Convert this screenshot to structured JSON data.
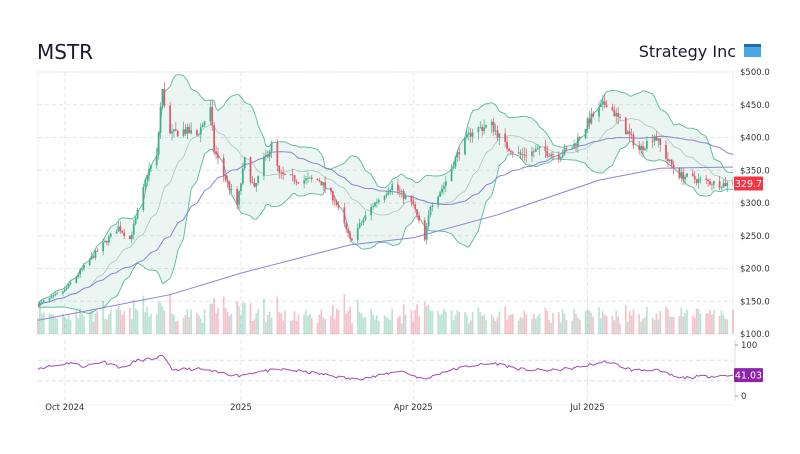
{
  "header": {
    "ticker": "MSTR",
    "company": "Strategy Inc",
    "logo_icon": "calendar-window-icon"
  },
  "colors": {
    "up": "#3fae8a",
    "down": "#e0566c",
    "band": "#5bb89a",
    "sma_mid": "#a8c8b8",
    "sma50": "#8a86cc",
    "sma200": "#8a86cc",
    "rsi": "#a04cb0",
    "price_tag": "#f23645",
    "rsi_tag": "#8e24aa"
  },
  "chart_data": {
    "type": "candlestick",
    "title": "MSTR",
    "price_axis": {
      "ylim": [
        100,
        500
      ],
      "ticks": [
        500,
        450,
        400,
        350,
        300,
        250,
        200,
        150,
        100
      ],
      "tick_labels": [
        "$500.0",
        "$450.0",
        "$400.0",
        "$350.0",
        "$300.0",
        "$250.0",
        "$200.0",
        "$150.0",
        "$100.0"
      ]
    },
    "x_axis": {
      "range": [
        "2024-09-17",
        "2025-09-15"
      ],
      "ticks": [
        {
          "date": "2024-10-01",
          "label": "Oct 2024"
        },
        {
          "date": "2025-01-01",
          "label": "2025"
        },
        {
          "date": "2025-04-01",
          "label": "Apr 2025"
        },
        {
          "date": "2025-07-01",
          "label": "Jul 2025"
        }
      ]
    },
    "grid": true,
    "close_path": [
      [
        "2024-09-17",
        145
      ],
      [
        "2024-09-24",
        155
      ],
      [
        "2024-10-01",
        167
      ],
      [
        "2024-10-14",
        213
      ],
      [
        "2024-10-22",
        240
      ],
      [
        "2024-10-29",
        263
      ],
      [
        "2024-11-04",
        245
      ],
      [
        "2024-11-07",
        274
      ],
      [
        "2024-11-11",
        320
      ],
      [
        "2024-11-13",
        346
      ],
      [
        "2024-11-18",
        370
      ],
      [
        "2024-11-20",
        446
      ],
      [
        "2024-11-21",
        470
      ],
      [
        "2024-11-25",
        404
      ],
      [
        "2024-12-02",
        411
      ],
      [
        "2024-12-09",
        404
      ],
      [
        "2024-12-16",
        442
      ],
      [
        "2024-12-18",
        381
      ],
      [
        "2024-12-23",
        343
      ],
      [
        "2024-12-30",
        297
      ],
      [
        "2025-01-03",
        365
      ],
      [
        "2025-01-08",
        320
      ],
      [
        "2025-01-13",
        365
      ],
      [
        "2025-01-17",
        388
      ],
      [
        "2025-01-21",
        343
      ],
      [
        "2025-01-31",
        335
      ],
      [
        "2025-02-11",
        335
      ],
      [
        "2025-02-19",
        305
      ],
      [
        "2025-02-27",
        243
      ],
      [
        "2025-03-04",
        266
      ],
      [
        "2025-03-11",
        297
      ],
      [
        "2025-03-21",
        327
      ],
      [
        "2025-04-01",
        297
      ],
      [
        "2025-04-07",
        243
      ],
      [
        "2025-04-10",
        297
      ],
      [
        "2025-04-17",
        327
      ],
      [
        "2025-04-25",
        381
      ],
      [
        "2025-05-02",
        411
      ],
      [
        "2025-05-12",
        419
      ],
      [
        "2025-05-19",
        388
      ],
      [
        "2025-05-27",
        373
      ],
      [
        "2025-06-06",
        381
      ],
      [
        "2025-06-16",
        373
      ],
      [
        "2025-06-24",
        388
      ],
      [
        "2025-07-02",
        427
      ],
      [
        "2025-07-11",
        454
      ],
      [
        "2025-07-14",
        442
      ],
      [
        "2025-07-21",
        411
      ],
      [
        "2025-07-28",
        381
      ],
      [
        "2025-08-05",
        404
      ],
      [
        "2025-08-12",
        365
      ],
      [
        "2025-08-18",
        343
      ],
      [
        "2025-08-28",
        335
      ],
      [
        "2025-09-08",
        329
      ],
      [
        "2025-09-15",
        329.7
      ]
    ],
    "sma200": [
      [
        "2024-09-17",
        121
      ],
      [
        "2024-11-25",
        160
      ],
      [
        "2025-01-01",
        193
      ],
      [
        "2025-02-27",
        236
      ],
      [
        "2025-04-01",
        247
      ],
      [
        "2025-05-15",
        282
      ],
      [
        "2025-07-07",
        335
      ],
      [
        "2025-08-08",
        353
      ],
      [
        "2025-09-15",
        355
      ]
    ],
    "last_price": "329.7",
    "rsi": {
      "ylim": [
        0,
        100
      ],
      "ticks": [
        100,
        0
      ],
      "tick_labels": [
        "100",
        "0"
      ],
      "levels": [
        70,
        30
      ],
      "last_value": "41.03",
      "points": [
        [
          "2024-09-17",
          55
        ],
        [
          "2024-09-27",
          60
        ],
        [
          "2024-10-04",
          66
        ],
        [
          "2024-10-11",
          58
        ],
        [
          "2024-10-21",
          68
        ],
        [
          "2024-10-31",
          55
        ],
        [
          "2024-11-08",
          70
        ],
        [
          "2024-11-14",
          72
        ],
        [
          "2024-11-21",
          78
        ],
        [
          "2024-11-26",
          52
        ],
        [
          "2024-12-10",
          53
        ],
        [
          "2024-12-20",
          46
        ],
        [
          "2024-12-31",
          40
        ],
        [
          "2025-01-10",
          48
        ],
        [
          "2025-01-24",
          52
        ],
        [
          "2025-02-10",
          44
        ],
        [
          "2025-02-28",
          33
        ],
        [
          "2025-03-12",
          38
        ],
        [
          "2025-03-25",
          50
        ],
        [
          "2025-04-07",
          32
        ],
        [
          "2025-04-17",
          48
        ],
        [
          "2025-05-02",
          60
        ],
        [
          "2025-05-14",
          64
        ],
        [
          "2025-05-28",
          52
        ],
        [
          "2025-06-12",
          50
        ],
        [
          "2025-06-26",
          56
        ],
        [
          "2025-07-11",
          68
        ],
        [
          "2025-07-25",
          50
        ],
        [
          "2025-08-05",
          52
        ],
        [
          "2025-08-18",
          35
        ],
        [
          "2025-08-29",
          38
        ],
        [
          "2025-09-15",
          41.03
        ]
      ]
    }
  }
}
